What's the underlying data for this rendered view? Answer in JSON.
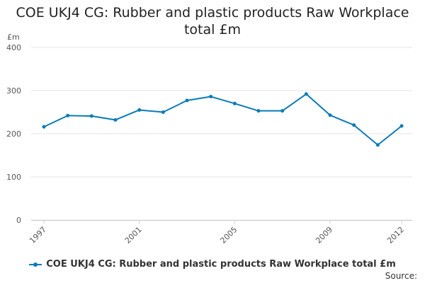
{
  "chart_data": {
    "type": "line",
    "title_lines": [
      "COE UKJ4 CG: Rubber and plastic products Raw Workplace",
      "total £m"
    ],
    "ylabel": "£m",
    "xlabel": "",
    "ylim": [
      0,
      400
    ],
    "yticks": [
      "0",
      "100",
      "200",
      "300",
      "400"
    ],
    "x": [
      1997,
      1998,
      1999,
      2000,
      2001,
      2002,
      2003,
      2004,
      2005,
      2006,
      2007,
      2008,
      2009,
      2010,
      2011,
      2012
    ],
    "xtick_labels": [
      "1997",
      "2001",
      "2005",
      "2009",
      "2012"
    ],
    "xtick_values": [
      1997,
      2001,
      2005,
      2009,
      2012
    ],
    "series": [
      {
        "name": "COE UKJ4 CG: Rubber and plastic products Raw Workplace total £m",
        "values": [
          216,
          242,
          241,
          232,
          255,
          250,
          277,
          286,
          270,
          253,
          253,
          292,
          243,
          220,
          174,
          218
        ]
      }
    ],
    "grid": true,
    "legend_position": "bottom",
    "series_color": "#0a7bb8",
    "source_label": "Source:"
  }
}
